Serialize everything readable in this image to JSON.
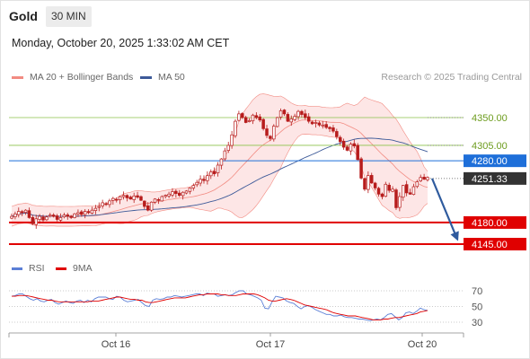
{
  "header": {
    "symbol": "Gold",
    "timeframe": "30 MIN",
    "datetime": "Monday, October 20, 2025 1:33:02 AM CET"
  },
  "legend": {
    "bollinger_label": "MA 20 + Bollinger Bands",
    "ma50_label": "MA 50",
    "credit": "Research © 2025 Trading Central",
    "rsi_label": "RSI",
    "rsi_ma_label": "9MA"
  },
  "colors": {
    "candle": "#b71c1c",
    "bollinger": "#f28b82",
    "band_fill": "#fde3e3",
    "ma50": "#3d5a99",
    "resistance": "#8bc34a",
    "pivot": "#1e6fd9",
    "support": "#e00000",
    "price": "#333333",
    "arrow": "#2f5b9e",
    "rsi": "#5b7fd6",
    "rsi_ma": "#e00000"
  },
  "chart_data": [
    {
      "type": "candlestick",
      "x_ticks": [
        "Oct 16",
        "Oct 17",
        "Oct 20"
      ],
      "levels": [
        {
          "label": "4350.00",
          "value": 4350,
          "kind": "resistance"
        },
        {
          "label": "4305.00",
          "value": 4305,
          "kind": "resistance"
        },
        {
          "label": "4280.00",
          "value": 4280,
          "kind": "pivot"
        },
        {
          "label": "4251.33",
          "value": 4251.33,
          "kind": "last-price"
        },
        {
          "label": "4180.00",
          "value": 4180,
          "kind": "support"
        },
        {
          "label": "4145.00",
          "value": 4145,
          "kind": "support"
        }
      ],
      "close": [
        4190,
        4194,
        4198,
        4196,
        4200,
        4188,
        4178,
        4186,
        4190,
        4184,
        4189,
        4192,
        4190,
        4185,
        4188,
        4192,
        4190,
        4188,
        4194,
        4196,
        4193,
        4198,
        4196,
        4200,
        4203,
        4206,
        4212,
        4210,
        4215,
        4219,
        4217,
        4222,
        4224,
        4220,
        4218,
        4223,
        4221,
        4216,
        4206,
        4200,
        4213,
        4218,
        4216,
        4222,
        4224,
        4226,
        4230,
        4227,
        4224,
        4229,
        4231,
        4236,
        4240,
        4245,
        4250,
        4248,
        4256,
        4262,
        4259,
        4273,
        4283,
        4296,
        4305,
        4322,
        4344,
        4356,
        4350,
        4342,
        4345,
        4354,
        4350,
        4346,
        4332,
        4321,
        4316,
        4336,
        4350,
        4361,
        4356,
        4344,
        4348,
        4352,
        4360,
        4355,
        4350,
        4344,
        4340,
        4342,
        4338,
        4338,
        4334,
        4332,
        4328,
        4319,
        4311,
        4302,
        4297,
        4307,
        4304,
        4282,
        4252,
        4234,
        4256,
        4244,
        4236,
        4226,
        4222,
        4242,
        4232,
        4234,
        4204,
        4222,
        4240,
        4228,
        4226,
        4238,
        4246,
        4253,
        4250,
        4253
      ],
      "ma20_approx": "centre of the pink Bollinger band",
      "ma50_approx": "blue line through the band"
    },
    {
      "type": "line",
      "name": "RSI",
      "y_ticks": [
        70,
        50,
        30
      ],
      "ylim": [
        20,
        80
      ],
      "series_names": [
        "RSI",
        "9MA"
      ],
      "rsi": [
        63,
        64,
        66,
        66,
        63,
        60,
        58,
        60,
        57,
        56,
        58,
        59,
        55,
        53,
        55,
        57,
        55,
        54,
        57,
        58,
        55,
        58,
        56,
        60,
        62,
        62,
        62,
        60,
        59,
        63,
        62,
        58,
        56,
        57,
        58,
        59,
        55,
        51,
        50,
        58,
        60,
        59,
        60,
        62,
        62,
        64,
        63,
        62,
        63,
        64,
        65,
        66,
        66,
        64,
        67,
        66,
        66,
        63,
        64,
        65,
        64,
        65,
        68,
        70,
        70,
        66,
        65,
        63,
        61,
        58,
        48,
        47,
        56,
        63,
        62,
        61,
        57,
        55,
        54,
        50,
        47,
        50,
        51,
        49,
        46,
        44,
        42,
        40,
        40,
        38,
        38,
        39,
        37,
        36,
        36,
        35,
        34,
        34,
        33,
        32,
        33,
        34,
        33,
        36,
        40,
        41,
        37,
        33,
        36,
        42,
        43,
        41,
        44,
        48,
        46,
        45
      ],
      "ma9": [
        63,
        63,
        64,
        64,
        64,
        63,
        62,
        61,
        60,
        59,
        58,
        58,
        57,
        56,
        56,
        56,
        56,
        56,
        56,
        56,
        56,
        56,
        57,
        57,
        57,
        58,
        59,
        60,
        61,
        62,
        62,
        61,
        60,
        59,
        59,
        58,
        58,
        56,
        55,
        55,
        56,
        57,
        58,
        59,
        60,
        61,
        61,
        61,
        61,
        62,
        63,
        64,
        65,
        65,
        66,
        66,
        66,
        66,
        65,
        65,
        64,
        64,
        64,
        65,
        66,
        66,
        66,
        66,
        65,
        63,
        61,
        58,
        57,
        57,
        58,
        59,
        60,
        59,
        58,
        56,
        54,
        52,
        51,
        50,
        49,
        48,
        47,
        46,
        44,
        42,
        41,
        40,
        39,
        38,
        38,
        38,
        37,
        36,
        35,
        34,
        33,
        33,
        33,
        34,
        34,
        35,
        36,
        36,
        37,
        38,
        39,
        40,
        41,
        43,
        44,
        45
      ]
    }
  ]
}
